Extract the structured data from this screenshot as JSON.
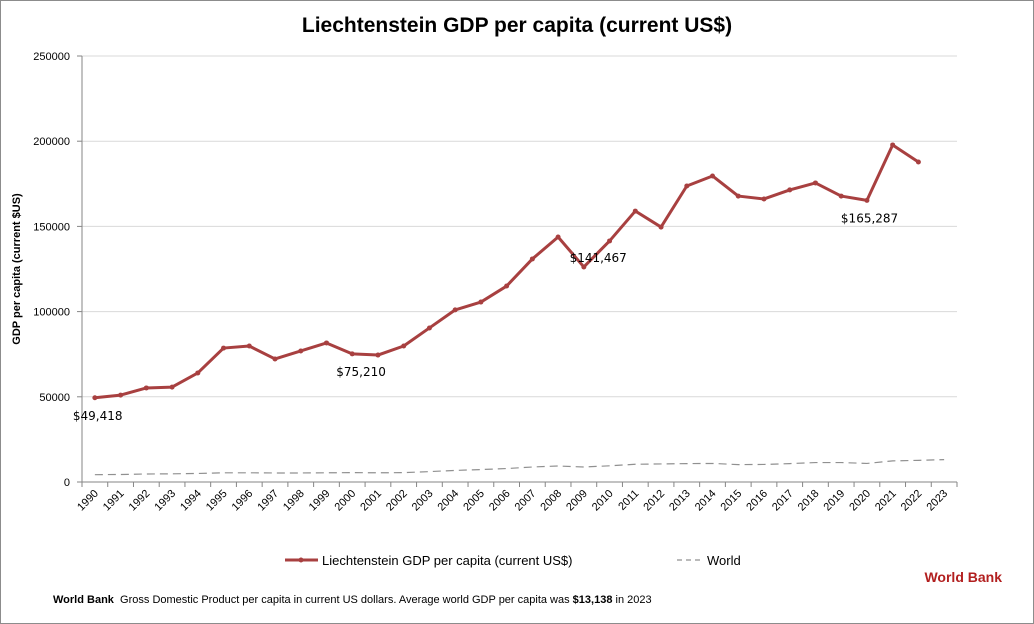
{
  "chart_data": {
    "type": "line",
    "title": "Liechtenstein GDP per capita (current US$)",
    "ylabel": "GDP per capita (current $US)",
    "xlabel": "",
    "ylim": [
      0,
      250000
    ],
    "yticks": [
      "0",
      "50000",
      "100000",
      "150000",
      "200000",
      "250000"
    ],
    "ytick_values": [
      0,
      50000,
      100000,
      150000,
      200000,
      250000
    ],
    "grid": true,
    "legend_position": "bottom",
    "categories": [
      "1990",
      "1991",
      "1992",
      "1993",
      "1994",
      "1995",
      "1996",
      "1997",
      "1998",
      "1999",
      "2000",
      "2001",
      "2002",
      "2003",
      "2004",
      "2005",
      "2006",
      "2007",
      "2008",
      "2009",
      "2010",
      "2011",
      "2012",
      "2013",
      "2014",
      "2015",
      "2016",
      "2017",
      "2018",
      "2019",
      "2020",
      "2021",
      "2022",
      "2023"
    ],
    "series": [
      {
        "name": "Liechtenstein GDP per capita (current US$)",
        "color": "#a84040",
        "style": "solid-markers",
        "values": [
          49418,
          51000,
          55200,
          55700,
          64000,
          78600,
          79800,
          72200,
          76900,
          81600,
          75210,
          74500,
          79800,
          90400,
          101000,
          105600,
          115000,
          130900,
          143800,
          126200,
          141467,
          159000,
          149600,
          173700,
          179600,
          167800,
          166100,
          171400,
          175500,
          167800,
          165287,
          197800,
          187800,
          null
        ]
      },
      {
        "name": "World",
        "color": "#909090",
        "style": "dashed",
        "values": [
          4300,
          4400,
          4700,
          4800,
          5000,
          5400,
          5400,
          5300,
          5300,
          5400,
          5500,
          5400,
          5500,
          6100,
          6800,
          7300,
          7900,
          8800,
          9400,
          8800,
          9500,
          10400,
          10600,
          10800,
          10900,
          10200,
          10300,
          10800,
          11400,
          11400,
          10900,
          12400,
          12700,
          13138
        ]
      }
    ],
    "annotations": [
      {
        "category": "1990",
        "text": "$49,418"
      },
      {
        "category": "2000",
        "text": "$75,210"
      },
      {
        "category": "2010",
        "text": "$141,467"
      },
      {
        "category": "2020",
        "text": "$165,287"
      }
    ]
  },
  "brand": "World Bank",
  "footer": {
    "source": "World Bank",
    "text": "Gross Domestic Product per capita in current US dollars.  Average world GDP per capita was ",
    "highlight": "$13,138",
    "suffix": " in 2023"
  }
}
